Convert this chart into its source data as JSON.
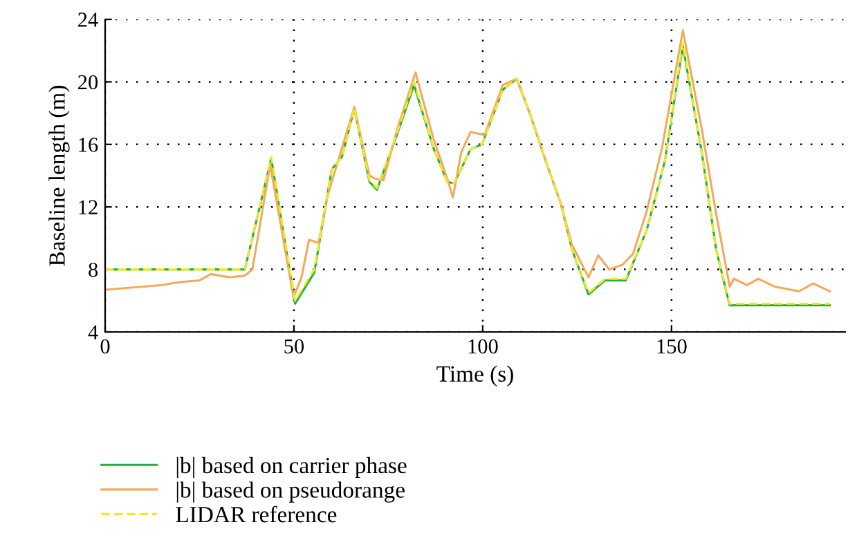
{
  "chart_data": {
    "type": "line",
    "xlabel": "Time (s)",
    "ylabel": "Baseline length (m)",
    "xlim": [
      0,
      196
    ],
    "ylim": [
      4,
      24
    ],
    "xticks": [
      0,
      50,
      100,
      150
    ],
    "yticks": [
      4,
      8,
      12,
      16,
      20,
      24
    ],
    "grid": true,
    "legend": "bottom",
    "marker": "none",
    "series": [
      {
        "name": "|b| based on carrier phase",
        "color": "#1db33b",
        "line_style": "solid",
        "x": [
          0,
          37,
          44,
          50.3,
          55.4,
          60,
          62.7,
          66,
          70,
          72,
          77.4,
          81.8,
          86.9,
          90.6,
          92.4,
          96.8,
          99.8,
          105.3,
          109,
          112.6,
          116.3,
          120.7,
          123.6,
          128,
          132.4,
          137.9,
          143.4,
          148.2,
          153,
          158,
          161.8,
          165.4,
          191.9
        ],
        "values": [
          8.0,
          8.0,
          15.1,
          5.8,
          7.8,
          14.4,
          15.2,
          18.3,
          13.6,
          13.1,
          16.7,
          19.8,
          15.8,
          13.6,
          13.5,
          15.7,
          16.0,
          19.5,
          20.2,
          17.9,
          15.2,
          12.2,
          9.3,
          6.4,
          7.3,
          7.3,
          10.5,
          14.9,
          22.3,
          15.5,
          9.3,
          5.7,
          5.7
        ]
      },
      {
        "name": "|b| based on pseudorange",
        "color": "#f4a95a",
        "line_style": "solid",
        "x": [
          0,
          5,
          10,
          15,
          20,
          25,
          28,
          33,
          37,
          39,
          43.7,
          49.9,
          52,
          54,
          56.5,
          59,
          61,
          66,
          70,
          71.5,
          73.7,
          77.4,
          82.2,
          86.9,
          90.6,
          92.1,
          94.3,
          96.8,
          100.5,
          105.3,
          109,
          112.6,
          116.3,
          120.7,
          123.6,
          128,
          130.6,
          133.5,
          137,
          139.8,
          143.4,
          147.5,
          153,
          158,
          162,
          165.4,
          166.5,
          170,
          173,
          177.3,
          183.8,
          187.5,
          191.9
        ],
        "values": [
          6.7,
          6.8,
          6.9,
          7.0,
          7.2,
          7.3,
          7.7,
          7.5,
          7.6,
          8.0,
          14.7,
          6.2,
          7.5,
          9.9,
          9.7,
          12.8,
          14.4,
          18.4,
          14.0,
          13.8,
          13.7,
          17.0,
          20.6,
          16.4,
          13.8,
          12.6,
          15.5,
          16.8,
          16.6,
          19.8,
          20.2,
          17.9,
          15.2,
          12.2,
          9.6,
          7.5,
          8.9,
          8.0,
          8.3,
          9.0,
          11.7,
          15.8,
          23.3,
          17.0,
          11.3,
          6.9,
          7.4,
          7.0,
          7.4,
          6.9,
          6.6,
          7.1,
          6.6
        ]
      },
      {
        "name": "LIDAR reference",
        "color": "#f2e829",
        "line_style": "dashed",
        "x": [
          0,
          37,
          44,
          50.3,
          55.4,
          60,
          62.7,
          66,
          70,
          72,
          77.4,
          81.8,
          86.9,
          90.6,
          92.4,
          96.8,
          99.8,
          105.3,
          109,
          112.6,
          116.3,
          120.7,
          123.6,
          128,
          132.4,
          137.9,
          143.4,
          148.2,
          153,
          158,
          161.8,
          165.4,
          191.9
        ],
        "values": [
          8.0,
          8.0,
          15.2,
          6.0,
          8.0,
          14.4,
          15.2,
          18.3,
          13.7,
          13.2,
          16.8,
          20.0,
          15.8,
          13.6,
          13.5,
          15.7,
          16.0,
          19.5,
          20.2,
          17.9,
          15.2,
          12.2,
          9.3,
          6.5,
          7.4,
          7.4,
          10.5,
          14.9,
          22.5,
          15.5,
          9.3,
          5.8,
          5.8
        ]
      }
    ]
  }
}
